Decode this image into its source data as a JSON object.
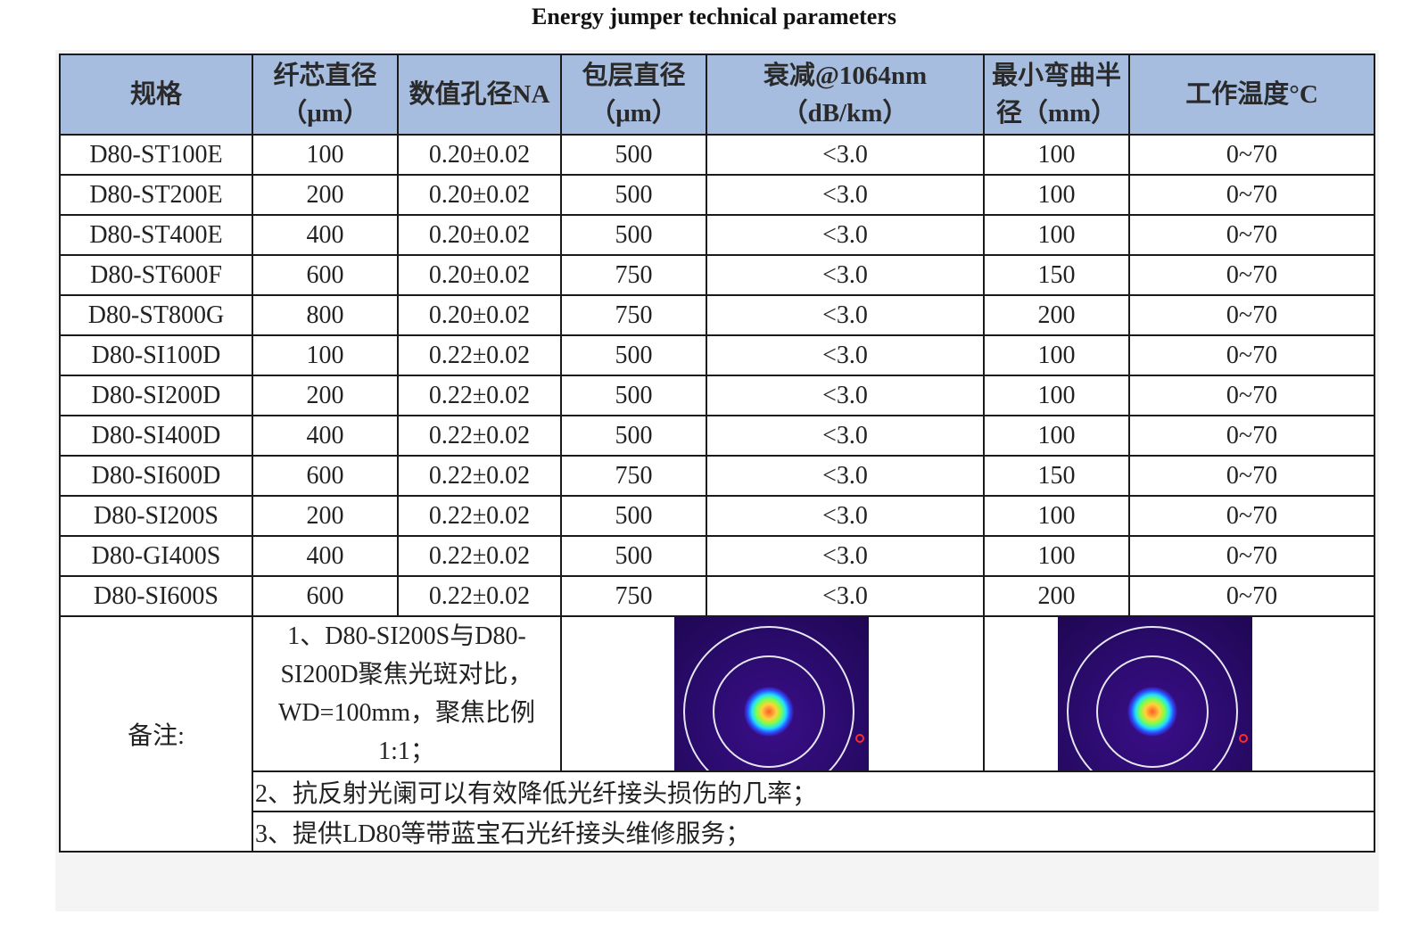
{
  "title": "Energy jumper technical parameters",
  "headers": [
    {
      "line1": "规格",
      "line2": ""
    },
    {
      "line1": "纤芯直径",
      "line2": "（μm）"
    },
    {
      "line1": "数值孔径NA",
      "line2": ""
    },
    {
      "line1": "包层直径",
      "line2": "（μm）"
    },
    {
      "line1": "衰减@1064nm",
      "line2": "（dB/km）"
    },
    {
      "line1": "最小弯曲半",
      "line2": "径（mm）"
    },
    {
      "line1": "工作温度°C",
      "line2": ""
    }
  ],
  "rows": [
    [
      "D80-ST100E",
      "100",
      "0.20±0.02",
      "500",
      "<3.0",
      "100",
      "0~70"
    ],
    [
      "D80-ST200E",
      "200",
      "0.20±0.02",
      "500",
      "<3.0",
      "100",
      "0~70"
    ],
    [
      "D80-ST400E",
      "400",
      "0.20±0.02",
      "500",
      "<3.0",
      "100",
      "0~70"
    ],
    [
      "D80-ST600F",
      "600",
      "0.20±0.02",
      "750",
      "<3.0",
      "150",
      "0~70"
    ],
    [
      "D80-ST800G",
      "800",
      "0.20±0.02",
      "750",
      "<3.0",
      "200",
      "0~70"
    ],
    [
      "D80-SI100D",
      "100",
      "0.22±0.02",
      "500",
      "<3.0",
      "100",
      "0~70"
    ],
    [
      "D80-SI200D",
      "200",
      "0.22±0.02",
      "500",
      "<3.0",
      "100",
      "0~70"
    ],
    [
      "D80-SI400D",
      "400",
      "0.22±0.02",
      "500",
      "<3.0",
      "100",
      "0~70"
    ],
    [
      "D80-SI600D",
      "600",
      "0.22±0.02",
      "750",
      "<3.0",
      "150",
      "0~70"
    ],
    [
      "D80-SI200S",
      "200",
      "0.22±0.02",
      "500",
      "<3.0",
      "100",
      "0~70"
    ],
    [
      "D80-GI400S",
      "400",
      "0.22±0.02",
      "500",
      "<3.0",
      "100",
      "0~70"
    ],
    [
      "D80-SI600S",
      "600",
      "0.22±0.02",
      "750",
      "<3.0",
      "200",
      "0~70"
    ]
  ],
  "notes": {
    "label": "备注:",
    "note1": [
      "1、D80-SI200S与D80-",
      "SI200D聚焦光斑对比，",
      "WD=100mm，聚焦比例",
      "1:1；"
    ],
    "note2": "2、抗反射光阑可以有效降低光纤接头损伤的几率；",
    "note3": "3、提供LD80等带蓝宝石光纤接头维修服务；"
  },
  "images": {
    "spot_left": "focus-spot-profile-icon",
    "spot_right": "focus-spot-profile-icon"
  }
}
